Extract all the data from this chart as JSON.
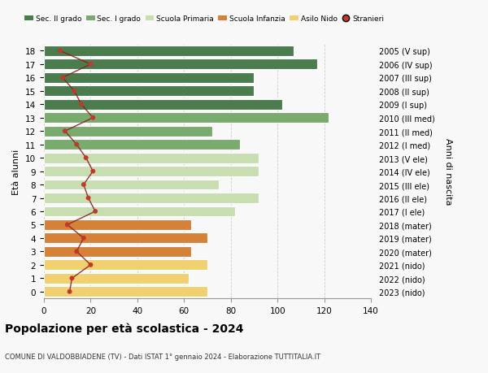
{
  "ages": [
    18,
    17,
    16,
    15,
    14,
    13,
    12,
    11,
    10,
    9,
    8,
    7,
    6,
    5,
    4,
    3,
    2,
    1,
    0
  ],
  "right_labels": [
    "2005 (V sup)",
    "2006 (IV sup)",
    "2007 (III sup)",
    "2008 (II sup)",
    "2009 (I sup)",
    "2010 (III med)",
    "2011 (II med)",
    "2012 (I med)",
    "2013 (V ele)",
    "2014 (IV ele)",
    "2015 (III ele)",
    "2016 (II ele)",
    "2017 (I ele)",
    "2018 (mater)",
    "2019 (mater)",
    "2020 (mater)",
    "2021 (nido)",
    "2022 (nido)",
    "2023 (nido)"
  ],
  "bar_values": [
    107,
    117,
    90,
    90,
    102,
    122,
    72,
    84,
    92,
    92,
    75,
    92,
    82,
    63,
    70,
    63,
    70,
    62,
    70
  ],
  "bar_colors": [
    "#4a7c4e",
    "#4a7c4e",
    "#4a7c4e",
    "#4a7c4e",
    "#4a7c4e",
    "#7aab6e",
    "#7aab6e",
    "#7aab6e",
    "#c8deb0",
    "#c8deb0",
    "#c8deb0",
    "#c8deb0",
    "#c8deb0",
    "#d4823a",
    "#d4823a",
    "#d4823a",
    "#f0d070",
    "#f0d070",
    "#f0d070"
  ],
  "stranieri_values": [
    7,
    20,
    8,
    13,
    16,
    21,
    9,
    14,
    18,
    21,
    17,
    19,
    22,
    10,
    17,
    14,
    20,
    12,
    11
  ],
  "title": "Popolazione per età scolastica - 2024",
  "subtitle": "COMUNE DI VALDOBBIADENE (TV) - Dati ISTAT 1° gennaio 2024 - Elaborazione TUTTITALIA.IT",
  "ylabel": "Età alunni",
  "right_ylabel": "Anni di nascita",
  "xlim": [
    0,
    140
  ],
  "xticks": [
    0,
    20,
    40,
    60,
    80,
    100,
    120,
    140
  ],
  "legend_labels": [
    "Sec. II grado",
    "Sec. I grado",
    "Scuola Primaria",
    "Scuola Infanzia",
    "Asilo Nido",
    "Stranieri"
  ],
  "legend_colors": [
    "#4a7c4e",
    "#7aab6e",
    "#c8deb0",
    "#d4823a",
    "#f0d070",
    "#c0392b"
  ],
  "bg_color": "#f8f8f8",
  "grid_color": "#cccccc",
  "bar_height": 0.78,
  "stranieri_color": "#c0392b",
  "stranieri_line_color": "#8b2020"
}
